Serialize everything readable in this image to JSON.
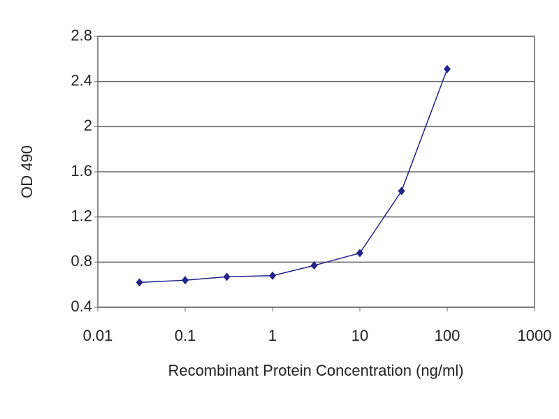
{
  "chart_data": {
    "type": "line",
    "x_label": "Recombinant Protein Concentration (ng/ml)",
    "y_label": "OD 490",
    "x": [
      0.03,
      0.1,
      0.3,
      1,
      3,
      10,
      30,
      100
    ],
    "series": [
      {
        "color": "#22228a",
        "values": [
          0.62,
          0.64,
          0.67,
          0.68,
          0.77,
          0.88,
          1.43,
          2.51
        ]
      }
    ],
    "xscale": "log",
    "xlim": [
      0.01,
      1000
    ],
    "xticks": [
      0.01,
      0.1,
      1,
      10,
      100,
      1000
    ],
    "ylim": [
      0.4,
      2.8
    ],
    "yticks": [
      0.4,
      0.8,
      1.2,
      1.6,
      2,
      2.4,
      2.8
    ],
    "grid": true
  }
}
